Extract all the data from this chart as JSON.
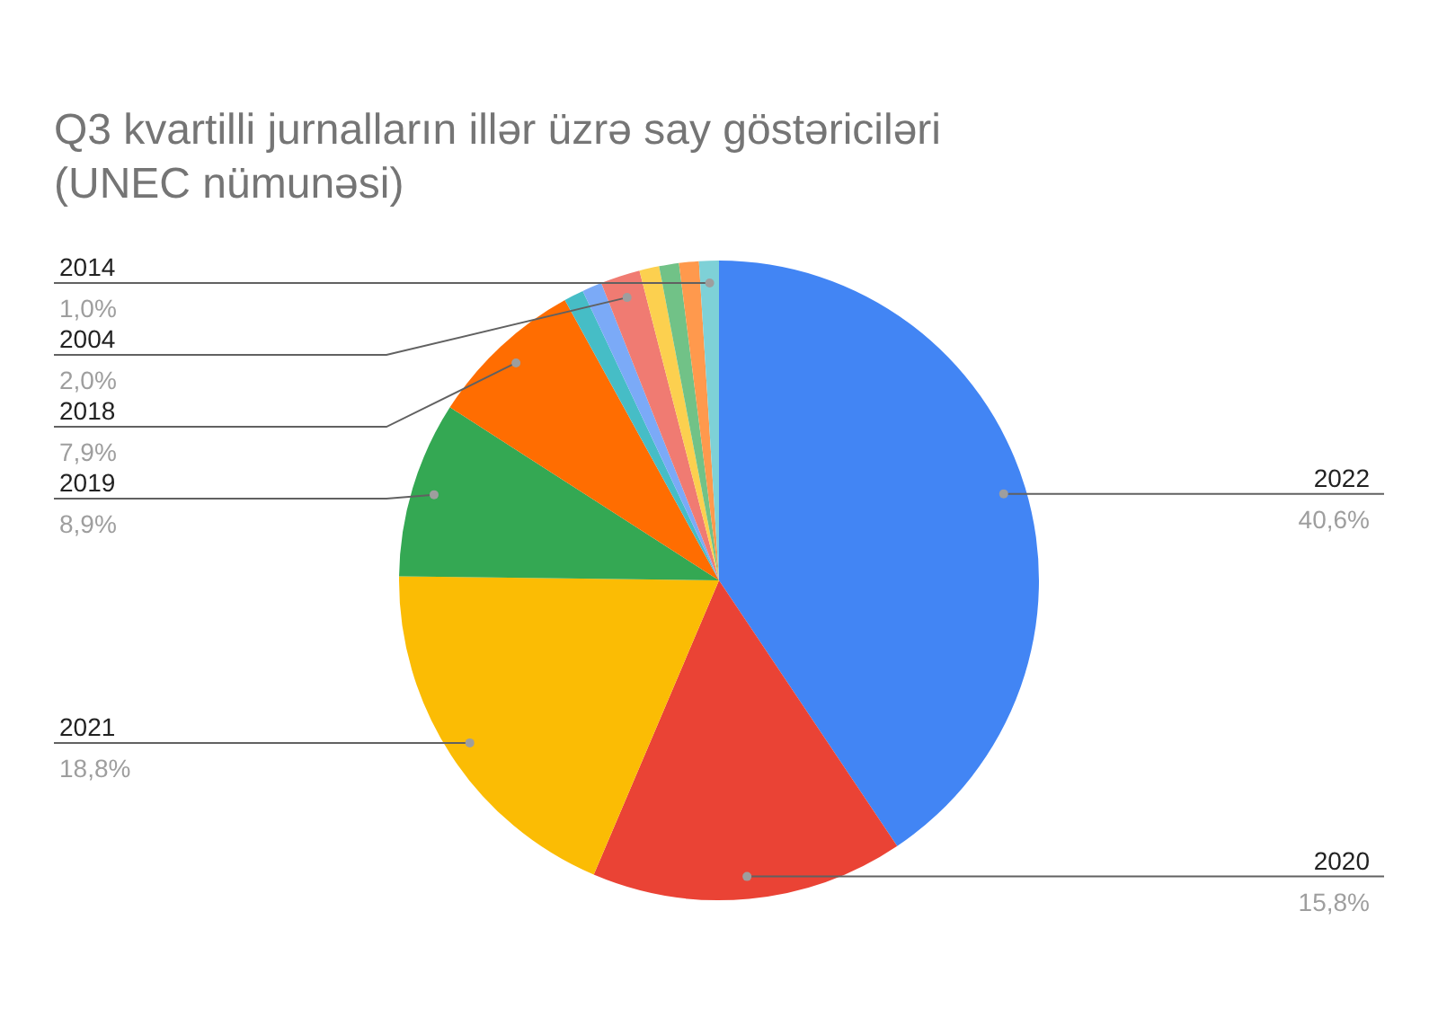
{
  "chart_data": {
    "type": "pie",
    "title": "Q3 kvartilli jurnalların illər üzrə say göstəriciləri (UNEC nümunəsi)",
    "categories": [
      "2022",
      "2020",
      "2021",
      "2019",
      "2018",
      null,
      null,
      "2004",
      null,
      null,
      null,
      "2014"
    ],
    "values": [
      40.6,
      15.8,
      18.8,
      8.9,
      7.9,
      1.0,
      1.0,
      2.0,
      1.0,
      1.0,
      1.0,
      1.0
    ],
    "value_labels": [
      "40,6%",
      "15,8%",
      "18,8%",
      "8,9%",
      "7,9%",
      null,
      null,
      "2,0%",
      null,
      null,
      null,
      "1,0%"
    ],
    "colors": [
      "#4285f4",
      "#ea4335",
      "#fbbc04",
      "#34a853",
      "#ff6d01",
      "#46bdc6",
      "#7baaf7",
      "#f07b72",
      "#fcd04f",
      "#71c287",
      "#ff994d",
      "#7ed1d7"
    ],
    "legend": false
  }
}
